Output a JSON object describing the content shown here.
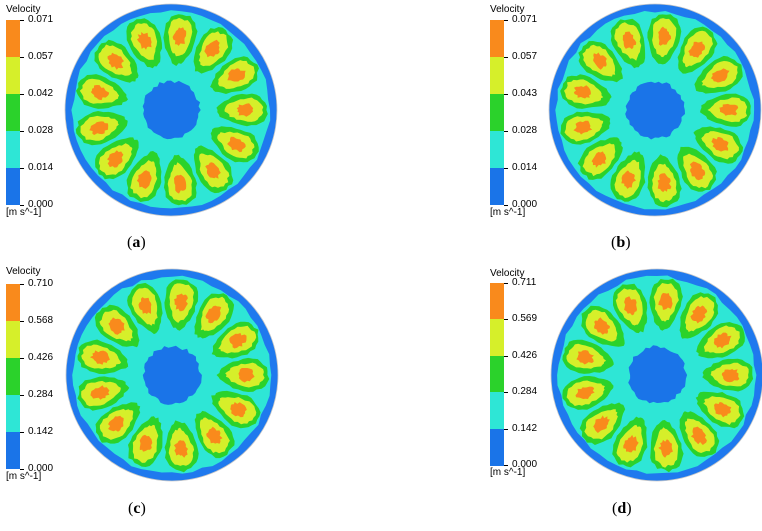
{
  "colors": {
    "band0": "#1a74e8",
    "band1": "#2ee6d6",
    "band2": "#2bd22b",
    "band3": "#d6ef2a",
    "band4": "#f98a1c",
    "outer": "#1f79ee"
  },
  "panels": [
    {
      "legend_title": "Velocity",
      "ticks": [
        "0.071",
        "0.057",
        "0.042",
        "0.028",
        "0.014",
        "0.000"
      ],
      "unit": "[m s^-1]",
      "caption_open": "(",
      "caption_letter": "a",
      "caption_close": ")"
    },
    {
      "legend_title": "Velocity",
      "ticks": [
        "0.071",
        "0.057",
        "0.043",
        "0.028",
        "0.014",
        "0.000"
      ],
      "unit": "[m s^-1]",
      "caption_open": "(",
      "caption_letter": "b",
      "caption_close": ")"
    },
    {
      "legend_title": "Velocity",
      "ticks": [
        "0.710",
        "0.568",
        "0.426",
        "0.284",
        "0.142",
        "0.000"
      ],
      "unit": "[m s^-1]",
      "caption_open": "(",
      "caption_letter": "c",
      "caption_close": ")"
    },
    {
      "legend_title": "Velocity",
      "ticks": [
        "0.711",
        "0.569",
        "0.426",
        "0.284",
        "0.142",
        "0.000"
      ],
      "unit": "[m s^-1]",
      "caption_open": "(",
      "caption_letter": "d",
      "caption_close": ")"
    }
  ]
}
